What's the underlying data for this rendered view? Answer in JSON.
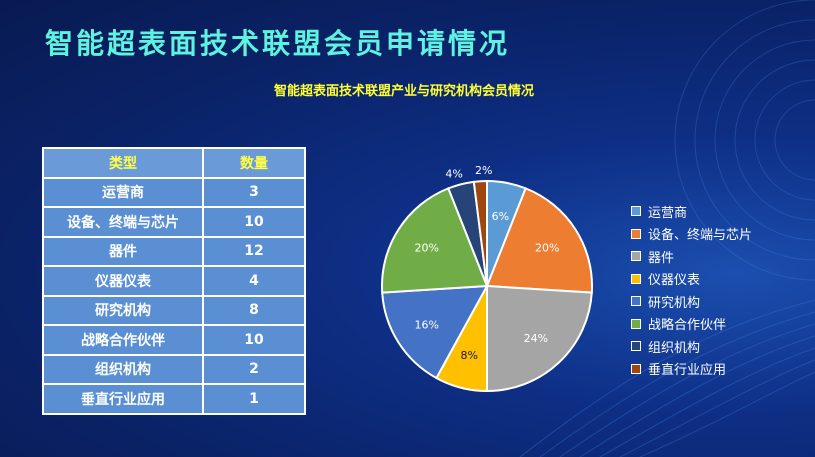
{
  "title": "智能超表面技术联盟会员申请情况",
  "table": {
    "headers": [
      "类型",
      "数量"
    ],
    "rows": [
      {
        "type": "运营商",
        "count": "3"
      },
      {
        "type": "设备、终端与芯片",
        "count": "10"
      },
      {
        "type": "器件",
        "count": "12"
      },
      {
        "type": "仪器仪表",
        "count": "4"
      },
      {
        "type": "研究机构",
        "count": "8"
      },
      {
        "type": "战略合作伙伴",
        "count": "10"
      },
      {
        "type": "组织机构",
        "count": "2"
      },
      {
        "type": "垂直行业应用",
        "count": "1"
      }
    ]
  },
  "chart_data": {
    "type": "pie",
    "title": "智能超表面技术联盟产业与研究机构会员情况",
    "categories": [
      "运营商",
      "设备、终端与芯片",
      "器件",
      "仪器仪表",
      "研究机构",
      "战略合作伙伴",
      "组织机构",
      "垂直行业应用"
    ],
    "values": [
      6,
      20,
      24,
      8,
      16,
      20,
      4,
      2
    ],
    "labels": [
      "6%",
      "20%",
      "24%",
      "8%",
      "16%",
      "20%",
      "4%",
      "2%"
    ],
    "colors": [
      "#5b9bd5",
      "#ed7d31",
      "#a5a5a5",
      "#ffc000",
      "#4472c4",
      "#70ad47",
      "#264478",
      "#9e480e"
    ],
    "legend_position": "right"
  }
}
